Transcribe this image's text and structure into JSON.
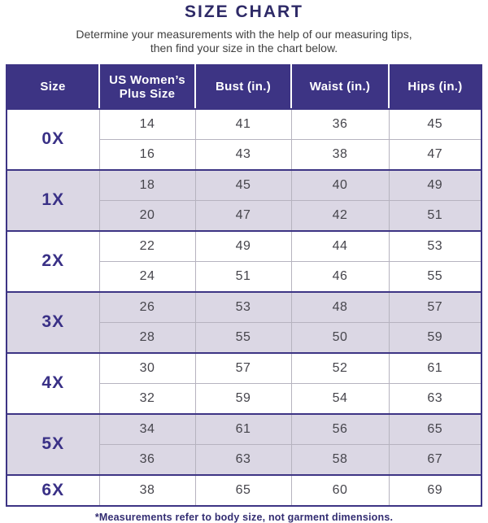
{
  "title": "SIZE CHART",
  "subtitle_line1": "Determine your measurements with the help of our measuring tips,",
  "subtitle_line2": "then find your size in the chart below.",
  "footnote": "*Measurements refer to body size, not garment dimensions.",
  "colors": {
    "header_bg": "#3d3484",
    "accent_text": "#332d72",
    "title_text": "#2e2a67",
    "size_label_text": "#393086",
    "alt_row_bg": "#dbd7e4",
    "body_text": "#46454c",
    "grid_line": "#b6b3bf",
    "header_divider": "#ffffff"
  },
  "table": {
    "columns": [
      "Size",
      "US Women’s Plus Size",
      "Bust (in.)",
      "Waist (in.)",
      "Hips (in.)"
    ],
    "groups": [
      {
        "size": "0X",
        "rows": [
          [
            "14",
            "41",
            "36",
            "45"
          ],
          [
            "16",
            "43",
            "38",
            "47"
          ]
        ]
      },
      {
        "size": "1X",
        "rows": [
          [
            "18",
            "45",
            "40",
            "49"
          ],
          [
            "20",
            "47",
            "42",
            "51"
          ]
        ]
      },
      {
        "size": "2X",
        "rows": [
          [
            "22",
            "49",
            "44",
            "53"
          ],
          [
            "24",
            "51",
            "46",
            "55"
          ]
        ]
      },
      {
        "size": "3X",
        "rows": [
          [
            "26",
            "53",
            "48",
            "57"
          ],
          [
            "28",
            "55",
            "50",
            "59"
          ]
        ]
      },
      {
        "size": "4X",
        "rows": [
          [
            "30",
            "57",
            "52",
            "61"
          ],
          [
            "32",
            "59",
            "54",
            "63"
          ]
        ]
      },
      {
        "size": "5X",
        "rows": [
          [
            "34",
            "61",
            "56",
            "65"
          ],
          [
            "36",
            "63",
            "58",
            "67"
          ]
        ]
      },
      {
        "size": "6X",
        "rows": [
          [
            "38",
            "65",
            "60",
            "69"
          ]
        ]
      }
    ]
  },
  "chart_data": {
    "type": "table",
    "title": "SIZE CHART",
    "columns": [
      "Size",
      "US Women’s Plus Size",
      "Bust (in.)",
      "Waist (in.)",
      "Hips (in.)"
    ],
    "rows": [
      [
        "0X",
        14,
        41,
        36,
        45
      ],
      [
        "0X",
        16,
        43,
        38,
        47
      ],
      [
        "1X",
        18,
        45,
        40,
        49
      ],
      [
        "1X",
        20,
        47,
        42,
        51
      ],
      [
        "2X",
        22,
        49,
        44,
        53
      ],
      [
        "2X",
        24,
        51,
        46,
        55
      ],
      [
        "3X",
        26,
        53,
        48,
        57
      ],
      [
        "3X",
        28,
        55,
        50,
        59
      ],
      [
        "4X",
        30,
        57,
        52,
        61
      ],
      [
        "4X",
        32,
        59,
        54,
        63
      ],
      [
        "5X",
        34,
        61,
        56,
        65
      ],
      [
        "5X",
        36,
        63,
        58,
        67
      ],
      [
        "6X",
        38,
        65,
        60,
        69
      ]
    ]
  }
}
